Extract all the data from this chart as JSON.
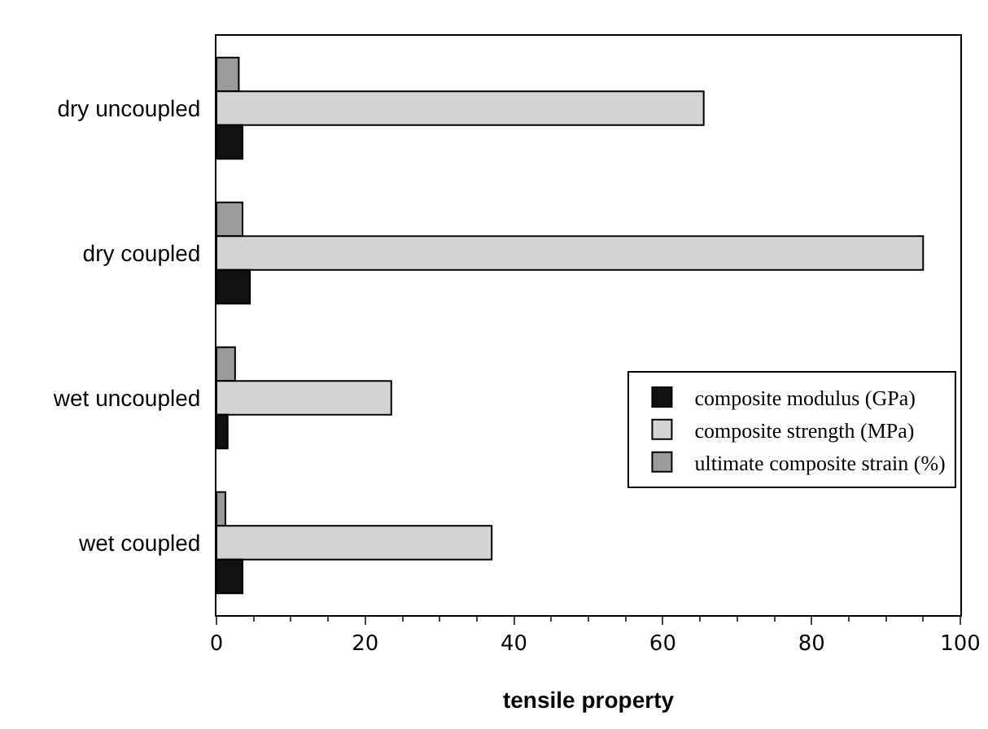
{
  "chart_data": {
    "type": "bar",
    "orientation": "horizontal",
    "xlabel": "tensile property",
    "categories": [
      "dry uncoupled",
      "dry coupled",
      "wet uncoupled",
      "wet coupled"
    ],
    "series": [
      {
        "name": "composite modulus (GPa)",
        "color": "#111111",
        "values": [
          3.5,
          4.5,
          1.5,
          3.5
        ]
      },
      {
        "name": "composite strength (MPa)",
        "color": "#d4d4d4",
        "values": [
          65.5,
          95,
          23.5,
          37
        ]
      },
      {
        "name": "ultimate composite strain (%)",
        "color": "#9a9a9a",
        "values": [
          3,
          3.5,
          2.5,
          1.2
        ]
      }
    ],
    "xlim": [
      0,
      100
    ],
    "xticks": [
      0,
      20,
      40,
      60,
      80,
      100
    ],
    "grid": false,
    "legend": "right"
  }
}
